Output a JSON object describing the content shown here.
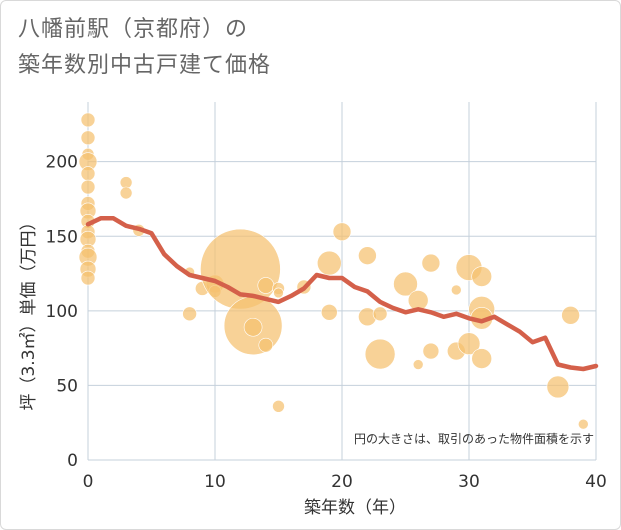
{
  "title_line1": "八幡前駅（京都府）の",
  "title_line2": "築年数別中古戸建て価格",
  "chart_data": {
    "type": "scatter",
    "title": "八幡前駅（京都府）の築年数別中古戸建て価格",
    "xlabel": "築年数（年）",
    "ylabel": "坪（3.3㎡）単価（万円）",
    "xlim": [
      0,
      40
    ],
    "ylim": [
      0,
      240
    ],
    "x_ticks": [
      0,
      10,
      20,
      30,
      40
    ],
    "y_ticks": [
      0,
      50,
      100,
      150,
      200
    ],
    "grid": true,
    "annotation": "円の大きさは、取引のあった物件面積を示す",
    "bubble_color": "#f5c06f",
    "line_color": "#d4604a",
    "bubbles": [
      {
        "x": 0,
        "y": 228,
        "r": 7
      },
      {
        "x": 0,
        "y": 216,
        "r": 7
      },
      {
        "x": 0,
        "y": 205,
        "r": 6
      },
      {
        "x": 0,
        "y": 200,
        "r": 9
      },
      {
        "x": 0,
        "y": 192,
        "r": 7
      },
      {
        "x": 0,
        "y": 183,
        "r": 7
      },
      {
        "x": 0,
        "y": 172,
        "r": 7
      },
      {
        "x": 0,
        "y": 167,
        "r": 8
      },
      {
        "x": 0,
        "y": 160,
        "r": 7
      },
      {
        "x": 0,
        "y": 153,
        "r": 7
      },
      {
        "x": 0,
        "y": 148,
        "r": 8
      },
      {
        "x": 0,
        "y": 140,
        "r": 7
      },
      {
        "x": 0,
        "y": 136,
        "r": 9
      },
      {
        "x": 0,
        "y": 128,
        "r": 8
      },
      {
        "x": 0,
        "y": 122,
        "r": 7
      },
      {
        "x": 3,
        "y": 186,
        "r": 6
      },
      {
        "x": 3,
        "y": 179,
        "r": 6
      },
      {
        "x": 4,
        "y": 154,
        "r": 6
      },
      {
        "x": 8,
        "y": 126,
        "r": 5
      },
      {
        "x": 8,
        "y": 98,
        "r": 7
      },
      {
        "x": 9,
        "y": 115,
        "r": 7
      },
      {
        "x": 10,
        "y": 118,
        "r": 9
      },
      {
        "x": 10,
        "y": 113,
        "r": 6
      },
      {
        "x": 12,
        "y": 128,
        "r": 40
      },
      {
        "x": 13,
        "y": 90,
        "r": 29
      },
      {
        "x": 13,
        "y": 89,
        "r": 9
      },
      {
        "x": 14,
        "y": 117,
        "r": 8
      },
      {
        "x": 14,
        "y": 77,
        "r": 7
      },
      {
        "x": 15,
        "y": 115,
        "r": 6
      },
      {
        "x": 15,
        "y": 112,
        "r": 5
      },
      {
        "x": 15,
        "y": 36,
        "r": 6
      },
      {
        "x": 17,
        "y": 116,
        "r": 7
      },
      {
        "x": 19,
        "y": 132,
        "r": 12
      },
      {
        "x": 19,
        "y": 99,
        "r": 8
      },
      {
        "x": 20,
        "y": 153,
        "r": 9
      },
      {
        "x": 22,
        "y": 137,
        "r": 9
      },
      {
        "x": 22,
        "y": 96,
        "r": 9
      },
      {
        "x": 23,
        "y": 98,
        "r": 7
      },
      {
        "x": 23,
        "y": 71,
        "r": 15
      },
      {
        "x": 25,
        "y": 118,
        "r": 12
      },
      {
        "x": 26,
        "y": 107,
        "r": 10
      },
      {
        "x": 26,
        "y": 64,
        "r": 5
      },
      {
        "x": 27,
        "y": 132,
        "r": 9
      },
      {
        "x": 27,
        "y": 73,
        "r": 8
      },
      {
        "x": 29,
        "y": 114,
        "r": 5
      },
      {
        "x": 29,
        "y": 73,
        "r": 9
      },
      {
        "x": 30,
        "y": 129,
        "r": 13
      },
      {
        "x": 30,
        "y": 78,
        "r": 11
      },
      {
        "x": 31,
        "y": 123,
        "r": 10
      },
      {
        "x": 31,
        "y": 101,
        "r": 13
      },
      {
        "x": 31,
        "y": 95,
        "r": 11
      },
      {
        "x": 31,
        "y": 68,
        "r": 10
      },
      {
        "x": 37,
        "y": 49,
        "r": 11
      },
      {
        "x": 38,
        "y": 97,
        "r": 9
      },
      {
        "x": 39,
        "y": 24,
        "r": 5
      }
    ],
    "trend": {
      "x": [
        0,
        1,
        2,
        3,
        4,
        5,
        6,
        7,
        8,
        9,
        10,
        11,
        12,
        13,
        14,
        15,
        16,
        17,
        18,
        19,
        20,
        21,
        22,
        23,
        24,
        25,
        26,
        27,
        28,
        29,
        30,
        31,
        32,
        33,
        34,
        35,
        36,
        37,
        38,
        39,
        40
      ],
      "y": [
        158,
        162,
        162,
        157,
        155,
        152,
        138,
        130,
        124,
        122,
        120,
        116,
        111,
        110,
        108,
        106,
        110,
        115,
        124,
        122,
        122,
        116,
        113,
        106,
        102,
        99,
        101,
        99,
        96,
        98,
        95,
        93,
        96,
        91,
        86,
        79,
        82,
        64,
        62,
        61,
        63
      ]
    }
  }
}
